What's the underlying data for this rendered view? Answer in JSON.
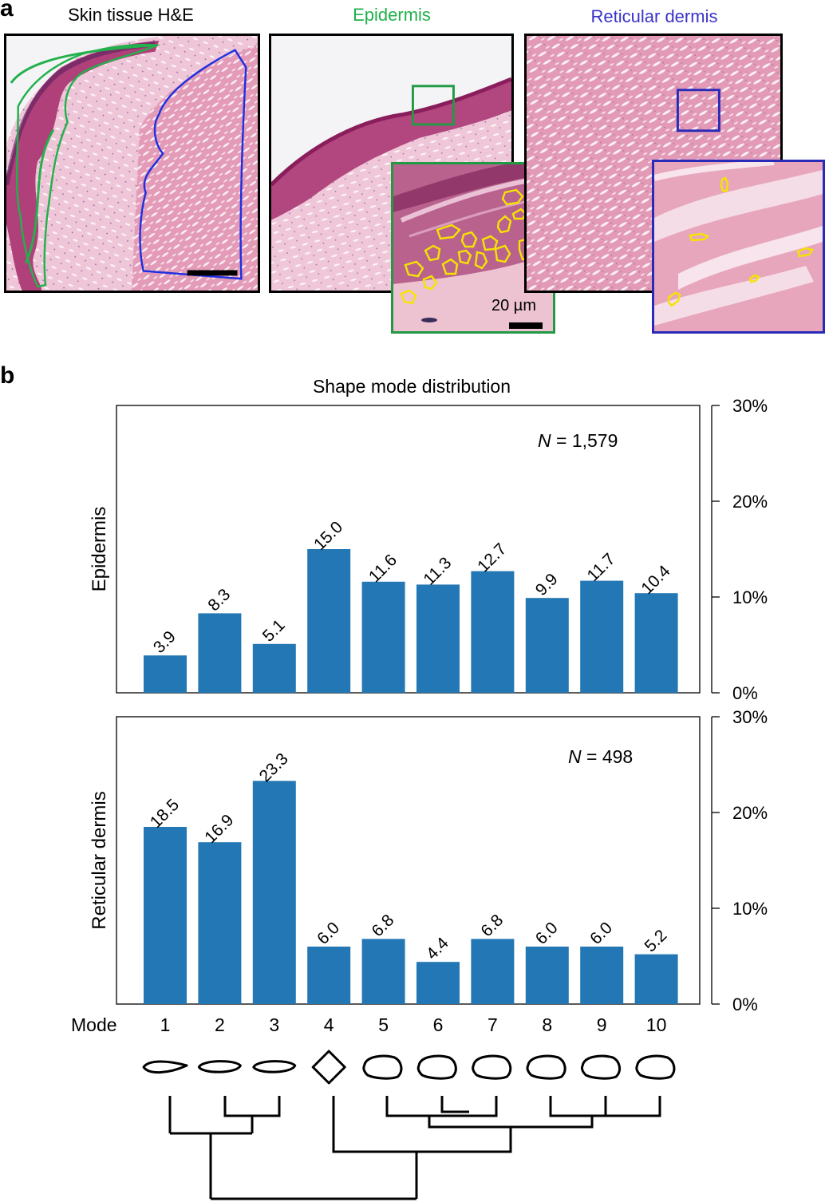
{
  "panel_a": {
    "letter": "a",
    "titles": {
      "skin": "Skin tissue H&E",
      "epidermis": "Epidermis",
      "dermis": "Reticular dermis"
    },
    "scale_label": "20 µm",
    "colors": {
      "epidermis": "#22b14c",
      "dermis": "#3a33c9",
      "tissue_pink": "#e8a4c0",
      "nuclei_outline": "#f5e400"
    }
  },
  "panel_b": {
    "letter": "b",
    "mode_label": "Mode",
    "shape_icons": [
      "teardrop-shape-icon",
      "ellipse-shape-icon",
      "ellipse-shape-icon",
      "diamond-shape-icon",
      "round-shape-icon",
      "round-shape-icon",
      "round-shape-icon",
      "round-shape-icon",
      "round-shape-icon",
      "round-shape-icon"
    ]
  },
  "chart_data": [
    {
      "type": "bar",
      "title": "Shape mode distribution",
      "ylabel": "Epidermis",
      "annotation": "N = 1,579",
      "annotation_parts": [
        "N",
        " = 1,579"
      ],
      "categories": [
        "1",
        "2",
        "3",
        "4",
        "5",
        "6",
        "7",
        "8",
        "9",
        "10"
      ],
      "values": [
        3.9,
        8.3,
        5.1,
        15.0,
        11.6,
        11.3,
        12.7,
        9.9,
        11.7,
        10.4
      ],
      "value_labels": [
        "3.9",
        "8.3",
        "5.1",
        "15.0",
        "11.6",
        "11.3",
        "12.7",
        "9.9",
        "11.7",
        "10.4"
      ],
      "ylim": [
        0,
        30
      ],
      "yticks": [
        "0%",
        "10%",
        "20%",
        "30%"
      ],
      "y_axis_side": "right",
      "bar_color": "#2377b4",
      "grid": false
    },
    {
      "type": "bar",
      "title": "",
      "ylabel": "Reticular dermis",
      "annotation": "N = 498",
      "annotation_parts": [
        "N",
        " = 498"
      ],
      "categories": [
        "1",
        "2",
        "3",
        "4",
        "5",
        "6",
        "7",
        "8",
        "9",
        "10"
      ],
      "values": [
        18.5,
        16.9,
        23.3,
        6.0,
        6.8,
        4.4,
        6.8,
        6.0,
        6.0,
        5.2
      ],
      "value_labels": [
        "18.5",
        "16.9",
        "23.3",
        "6.0",
        "6.8",
        "4.4",
        "6.8",
        "6.0",
        "6.0",
        "5.2"
      ],
      "ylim": [
        0,
        30
      ],
      "yticks": [
        "0%",
        "10%",
        "20%",
        "30%"
      ],
      "y_axis_side": "right",
      "bar_color": "#2377b4",
      "grid": false
    }
  ]
}
